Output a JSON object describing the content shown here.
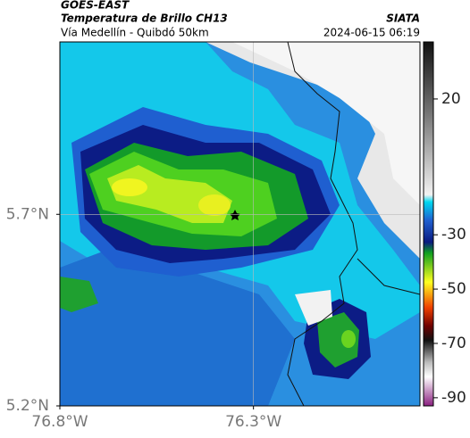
{
  "header": {
    "source": "GOES-EAST",
    "title": "Temperatura de Brillo CH13",
    "subtitle": "Vía Medellín - Quibdó 50km",
    "agency": "SIATA",
    "datetime": "2024-06-15 06:19"
  },
  "map": {
    "xlim": [
      -76.8,
      -75.87
    ],
    "ylim": [
      5.2,
      6.15
    ],
    "xticks": [
      {
        "value": -76.8,
        "label": "76.8°W"
      },
      {
        "value": -76.3,
        "label": "76.3°W"
      }
    ],
    "yticks": [
      {
        "value": 5.2,
        "label": "5.2°N"
      },
      {
        "value": 5.7,
        "label": "5.7°N"
      }
    ]
  },
  "colorbar": {
    "ylim": [
      -93,
      41
    ],
    "yticks": [
      20,
      -30,
      -50,
      -70,
      -90
    ]
  }
}
